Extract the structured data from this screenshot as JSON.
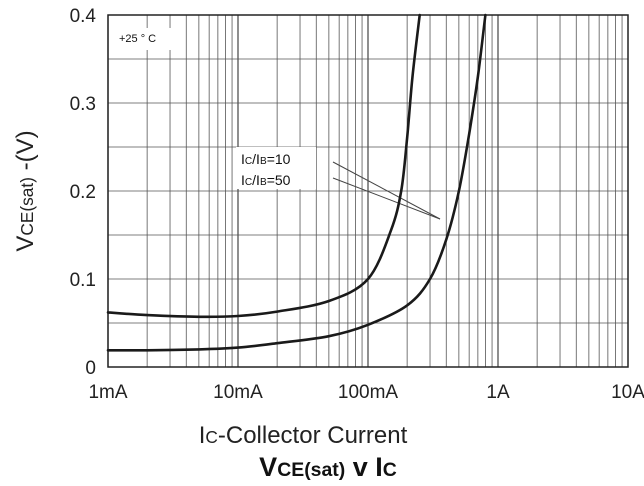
{
  "chart_data": {
    "type": "line",
    "title_prefix": "V",
    "title_sub": "CE(sat)",
    "title_mid": " v I",
    "title_sub2": "C",
    "xlabel_prefix": "I",
    "xlabel_sub": "C",
    "xlabel_rest": "-Collector Current",
    "ylabel_prefix": "V",
    "ylabel_sub": "CE(sat)",
    "ylabel_rest": " -(V)",
    "x_scale": "log",
    "xlim": [
      0.001,
      10
    ],
    "ylim": [
      0,
      0.4
    ],
    "x_tick_values": [
      0.001,
      0.01,
      0.1,
      1,
      10
    ],
    "x_tick_labels": [
      "1mA",
      "10mA",
      "100mA",
      "1A",
      "10A"
    ],
    "y_tick_values": [
      0,
      0.1,
      0.2,
      0.3,
      0.4
    ],
    "y_tick_labels": [
      "0",
      "0.1",
      "0.2",
      "0.3",
      "0.4"
    ],
    "grid": true,
    "annotation": "+25 ° C",
    "series": [
      {
        "name_I": "I",
        "name_C": "C",
        "name_mid": "/I",
        "name_B": "B",
        "name_val": "=10",
        "x": [
          0.001,
          0.002,
          0.005,
          0.01,
          0.02,
          0.05,
          0.1,
          0.15,
          0.18,
          0.2,
          0.22,
          0.25
        ],
        "y": [
          0.062,
          0.059,
          0.057,
          0.058,
          0.063,
          0.075,
          0.1,
          0.155,
          0.2,
          0.26,
          0.33,
          0.4
        ]
      },
      {
        "name_I": "I",
        "name_C": "C",
        "name_mid": "/I",
        "name_B": "B",
        "name_val": "=50",
        "x": [
          0.001,
          0.002,
          0.005,
          0.01,
          0.02,
          0.05,
          0.1,
          0.2,
          0.3,
          0.4,
          0.5,
          0.6,
          0.7,
          0.8
        ],
        "y": [
          0.019,
          0.019,
          0.02,
          0.022,
          0.027,
          0.035,
          0.048,
          0.07,
          0.1,
          0.145,
          0.2,
          0.265,
          0.33,
          0.4
        ]
      }
    ]
  }
}
